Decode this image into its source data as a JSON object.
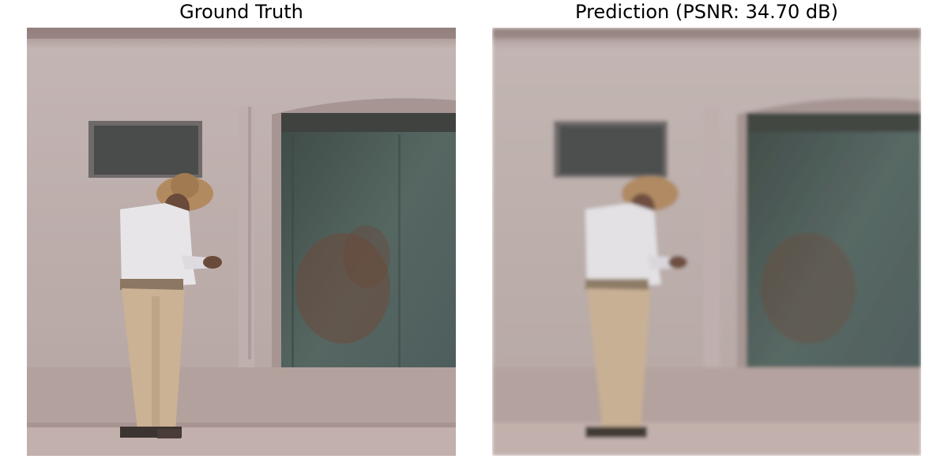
{
  "panels": [
    {
      "title": "Ground Truth"
    },
    {
      "title": "Prediction (PSNR: 34.70 dB)"
    }
  ],
  "colors": {
    "wall": "#b9aaa8",
    "wall_light": "#c6b9b6",
    "door": "#4f5e58",
    "door_dark": "#3d4845",
    "rust": "#6e4a3d",
    "sign": "#4b4d4c",
    "shirt": "#e6e4e6",
    "trousers": "#cbb294",
    "hat": "#b28a60",
    "ground": "#b3a09b"
  }
}
